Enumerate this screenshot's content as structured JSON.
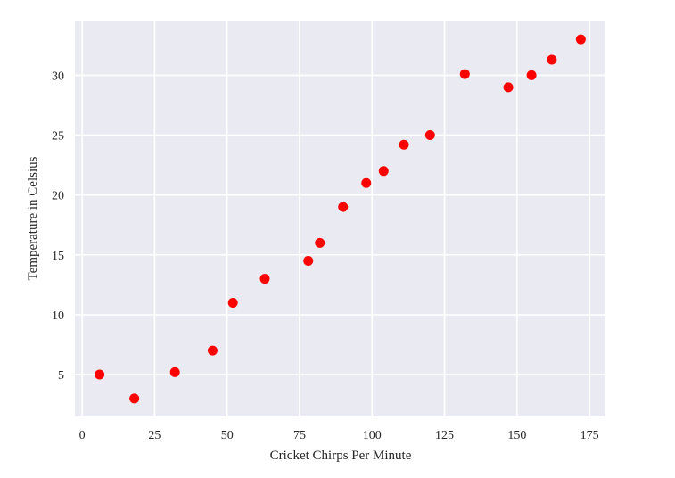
{
  "chart_data": {
    "type": "scatter",
    "title": "",
    "xlabel": "Cricket Chirps Per Minute",
    "ylabel": "Temperature in Celsius",
    "xlim": [
      -2.5,
      180.5
    ],
    "ylim": [
      1.5,
      34.5
    ],
    "xticks": [
      0,
      25,
      50,
      75,
      100,
      125,
      150,
      175
    ],
    "yticks": [
      5,
      10,
      15,
      20,
      25,
      30
    ],
    "xtick_labels": [
      "0",
      "25",
      "50",
      "75",
      "100",
      "125",
      "150",
      "175"
    ],
    "ytick_labels": [
      "5",
      "10",
      "15",
      "20",
      "25",
      "30"
    ],
    "grid": true,
    "background_color": "#eaeaf2",
    "grid_color": "#ffffff",
    "marker_color": "#ff0000",
    "points": [
      {
        "x": 6,
        "y": 5
      },
      {
        "x": 18,
        "y": 3
      },
      {
        "x": 32,
        "y": 5.2
      },
      {
        "x": 45,
        "y": 7
      },
      {
        "x": 52,
        "y": 11
      },
      {
        "x": 63,
        "y": 13
      },
      {
        "x": 78,
        "y": 14.5
      },
      {
        "x": 82,
        "y": 16
      },
      {
        "x": 90,
        "y": 19
      },
      {
        "x": 98,
        "y": 21
      },
      {
        "x": 104,
        "y": 22
      },
      {
        "x": 111,
        "y": 24.2
      },
      {
        "x": 120,
        "y": 25
      },
      {
        "x": 132,
        "y": 30.1
      },
      {
        "x": 147,
        "y": 29
      },
      {
        "x": 155,
        "y": 30
      },
      {
        "x": 162,
        "y": 31.3
      },
      {
        "x": 172,
        "y": 33
      }
    ]
  }
}
